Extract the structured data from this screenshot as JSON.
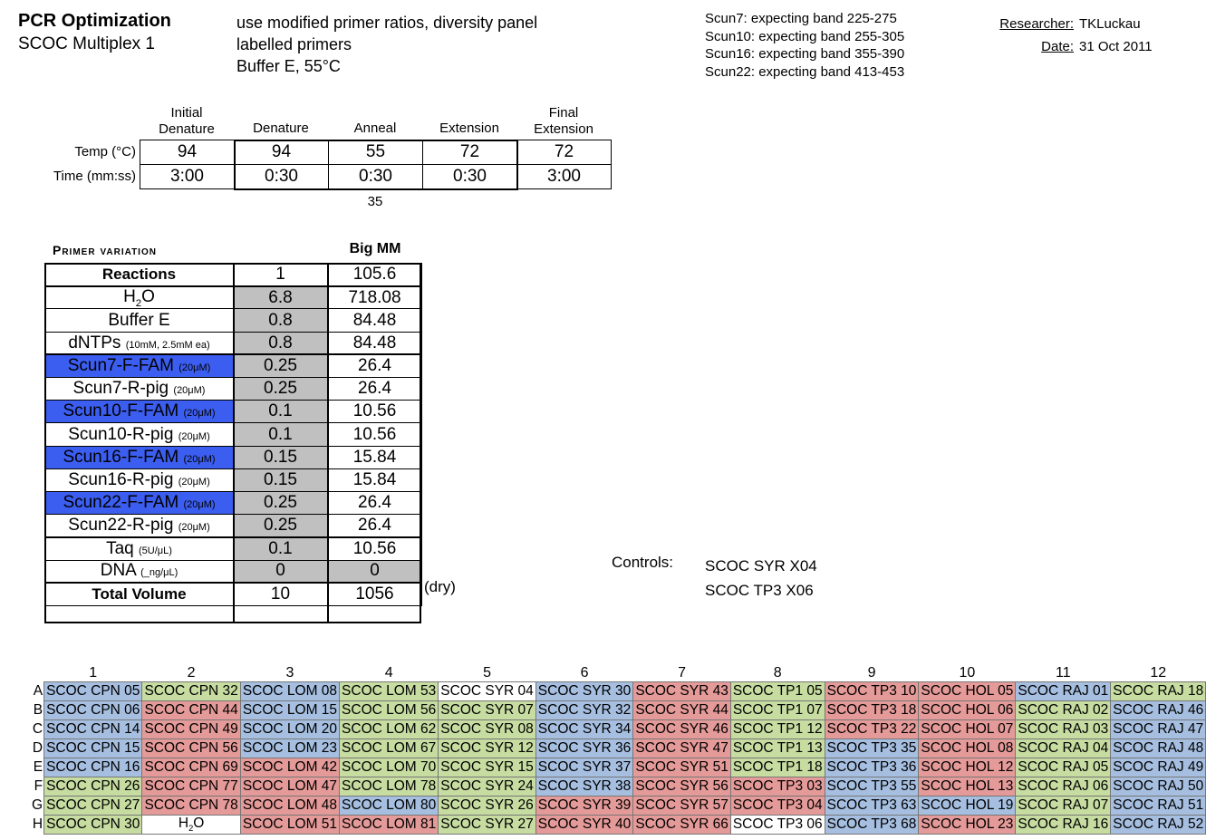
{
  "header": {
    "title": "PCR Optimization",
    "subtitle": "SCOC Multiplex 1",
    "notes": [
      "use modified primer ratios, diversity panel",
      "labelled primers",
      "Buffer E, 55°C"
    ],
    "bands": [
      "Scun7: expecting band 225-275",
      "Scun10: expecting band 255-305",
      "Scun16: expecting band 355-390",
      "Scun22: expecting band 413-453"
    ],
    "researcher_label": "Researcher:",
    "researcher": "TKLuckau",
    "date_label": "Date:",
    "date": "31 Oct 2011"
  },
  "cycle": {
    "headers": [
      [
        "Initial",
        "Denature"
      ],
      [
        "Denature"
      ],
      [
        "Anneal"
      ],
      [
        "Extension"
      ],
      [
        "Final",
        "Extension"
      ]
    ],
    "temp_label": "Temp (°C)",
    "time_label": "Time (mm:ss)",
    "temps": [
      "94",
      "94",
      "55",
      "72",
      "72"
    ],
    "times": [
      "3:00",
      "0:30",
      "0:30",
      "0:30",
      "3:00"
    ],
    "cycles": "35"
  },
  "primer": {
    "title": "Primer variation",
    "bigmm_label": "Big MM",
    "rows": [
      {
        "name": "Reactions",
        "small": "",
        "v1": "1",
        "v2": "105.6"
      },
      {
        "name": "H2O",
        "small": "",
        "v1": "6.8",
        "v2": "718.08"
      },
      {
        "name": "Buffer E",
        "small": "",
        "v1": "0.8",
        "v2": "84.48"
      },
      {
        "name": "dNTPs",
        "small": "(10mM, 2.5mM ea)",
        "v1": "0.8",
        "v2": "84.48"
      },
      {
        "name": "Scun7-F-FAM",
        "small": "(20μM)",
        "v1": "0.25",
        "v2": "26.4"
      },
      {
        "name": "Scun7-R-pig",
        "small": "(20μM)",
        "v1": "0.25",
        "v2": "26.4"
      },
      {
        "name": "Scun10-F-FAM",
        "small": "(20μM)",
        "v1": "0.1",
        "v2": "10.56"
      },
      {
        "name": "Scun10-R-pig",
        "small": "(20μM)",
        "v1": "0.1",
        "v2": "10.56"
      },
      {
        "name": "Scun16-F-FAM",
        "small": "(20μM)",
        "v1": "0.15",
        "v2": "15.84"
      },
      {
        "name": "Scun16-R-pig",
        "small": "(20μM)",
        "v1": "0.15",
        "v2": "15.84"
      },
      {
        "name": "Scun22-F-FAM",
        "small": "(20μM)",
        "v1": "0.25",
        "v2": "26.4"
      },
      {
        "name": "Scun22-R-pig",
        "small": "(20μM)",
        "v1": "0.25",
        "v2": "26.4"
      },
      {
        "name": "Taq",
        "small": "(5U/μL)",
        "v1": "0.1",
        "v2": "10.56"
      },
      {
        "name": "DNA",
        "small": "(_ng/μL)",
        "v1": "0",
        "v2": "0"
      },
      {
        "name": "Total Volume",
        "small": "",
        "v1": "10",
        "v2": "1056"
      }
    ],
    "dry_note": "(dry)"
  },
  "controls": {
    "label": "Controls:",
    "items": [
      "SCOC SYR X04",
      "SCOC TP3 X06"
    ]
  },
  "plate": {
    "columns": [
      "1",
      "2",
      "3",
      "4",
      "5",
      "6",
      "7",
      "8",
      "9",
      "10",
      "11",
      "12"
    ],
    "rows": [
      {
        "label": "A",
        "cells": [
          "SCOC CPN 05",
          "SCOC CPN 32",
          "SCOC LOM 08",
          "SCOC LOM 53",
          "SCOC SYR 04",
          "SCOC SYR 30",
          "SCOC SYR 43",
          "SCOC TP1 05",
          "SCOC TP3 10",
          "SCOC HOL 05",
          "SCOC RAJ 01",
          "SCOC RAJ 18"
        ]
      },
      {
        "label": "B",
        "cells": [
          "SCOC CPN 06",
          "SCOC CPN 44",
          "SCOC LOM 15",
          "SCOC LOM 56",
          "SCOC SYR 07",
          "SCOC SYR 32",
          "SCOC SYR 44",
          "SCOC TP1 07",
          "SCOC TP3 18",
          "SCOC HOL 06",
          "SCOC RAJ 02",
          "SCOC RAJ 46"
        ]
      },
      {
        "label": "C",
        "cells": [
          "SCOC CPN 14",
          "SCOC CPN 49",
          "SCOC LOM 20",
          "SCOC LOM 62",
          "SCOC SYR 08",
          "SCOC SYR 34",
          "SCOC SYR 46",
          "SCOC TP1 12",
          "SCOC TP3 22",
          "SCOC HOL 07",
          "SCOC RAJ 03",
          "SCOC RAJ 47"
        ]
      },
      {
        "label": "D",
        "cells": [
          "SCOC CPN 15",
          "SCOC CPN 56",
          "SCOC LOM 23",
          "SCOC LOM 67",
          "SCOC SYR 12",
          "SCOC SYR 36",
          "SCOC SYR 47",
          "SCOC TP1 13",
          "SCOC TP3 35",
          "SCOC HOL 08",
          "SCOC RAJ 04",
          "SCOC RAJ 48"
        ]
      },
      {
        "label": "E",
        "cells": [
          "SCOC CPN 16",
          "SCOC CPN 69",
          "SCOC LOM 42",
          "SCOC LOM 70",
          "SCOC SYR 15",
          "SCOC SYR 37",
          "SCOC SYR 51",
          "SCOC TP1 18",
          "SCOC TP3 36",
          "SCOC HOL 12",
          "SCOC RAJ 05",
          "SCOC RAJ 49"
        ]
      },
      {
        "label": "F",
        "cells": [
          "SCOC CPN 26",
          "SCOC CPN 77",
          "SCOC LOM 47",
          "SCOC LOM 78",
          "SCOC SYR 24",
          "SCOC SYR 38",
          "SCOC SYR 56",
          "SCOC TP3 03",
          "SCOC TP3 55",
          "SCOC HOL 13",
          "SCOC RAJ 06",
          "SCOC RAJ 50"
        ]
      },
      {
        "label": "G",
        "cells": [
          "SCOC CPN 27",
          "SCOC CPN 78",
          "SCOC LOM 48",
          "SCOC LOM 80",
          "SCOC SYR 26",
          "SCOC SYR 39",
          "SCOC SYR 57",
          "SCOC TP3 04",
          "SCOC TP3 63",
          "SCOC HOL 19",
          "SCOC RAJ 07",
          "SCOC RAJ 51"
        ]
      },
      {
        "label": "H",
        "cells": [
          "SCOC CPN 30",
          "H2O",
          "SCOC LOM 51",
          "SCOC LOM 81",
          "SCOC SYR 27",
          "SCOC SYR 40",
          "SCOC SYR 66",
          "SCOC TP3 06",
          "SCOC TP3 68",
          "SCOC HOL 23",
          "SCOC RAJ 16",
          "SCOC RAJ 52"
        ]
      }
    ],
    "colors": {
      "blue": "#a6bfe0",
      "green": "#c6dca0",
      "red": "#e49a98",
      "white": "#ffffff",
      "fam_blue": "#3c5ef0",
      "grey": "#c0c0c0"
    },
    "color_map": [
      [
        "blue",
        "green",
        "blue",
        "green",
        "white",
        "blue",
        "red",
        "green",
        "red",
        "red",
        "blue",
        "green"
      ],
      [
        "blue",
        "red",
        "blue",
        "green",
        "green",
        "blue",
        "red",
        "green",
        "red",
        "red",
        "green",
        "blue"
      ],
      [
        "blue",
        "red",
        "blue",
        "green",
        "green",
        "blue",
        "red",
        "green",
        "red",
        "red",
        "green",
        "blue"
      ],
      [
        "blue",
        "red",
        "blue",
        "green",
        "green",
        "blue",
        "red",
        "green",
        "blue",
        "red",
        "green",
        "blue"
      ],
      [
        "blue",
        "red",
        "red",
        "green",
        "green",
        "blue",
        "red",
        "green",
        "blue",
        "red",
        "green",
        "blue"
      ],
      [
        "green",
        "red",
        "red",
        "green",
        "green",
        "blue",
        "red",
        "red",
        "blue",
        "red",
        "green",
        "blue"
      ],
      [
        "green",
        "red",
        "red",
        "blue",
        "green",
        "red",
        "red",
        "red",
        "blue",
        "blue",
        "green",
        "blue"
      ],
      [
        "green",
        "white",
        "red",
        "red",
        "green",
        "red",
        "red",
        "white",
        "blue",
        "red",
        "green",
        "blue"
      ]
    ]
  }
}
